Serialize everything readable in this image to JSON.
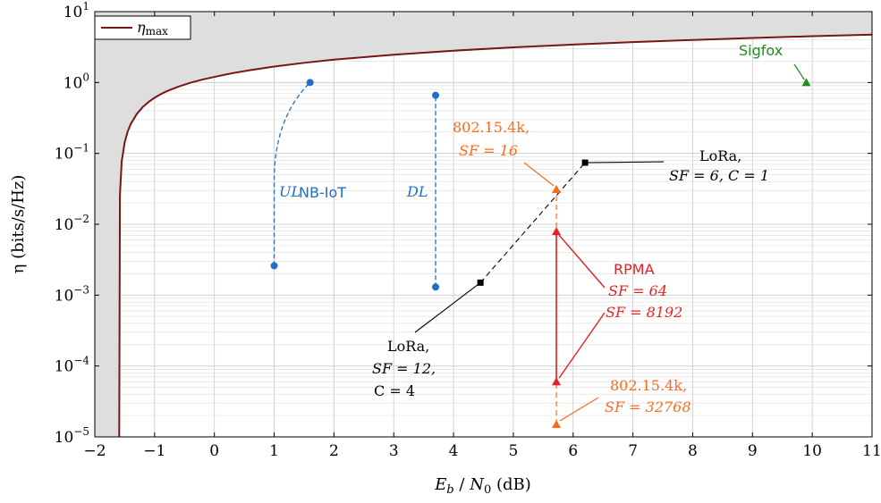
{
  "chart_data": {
    "type": "line",
    "title": "",
    "xlabel": "E_b / N_0 (dB)",
    "xlabel_parts": {
      "e": "E",
      "b": "b",
      "slash": " / ",
      "n": "N",
      "zero": "0",
      "unit": " (dB)"
    },
    "ylabel": "η (bits/s/Hz)",
    "xlim": [
      -2,
      11
    ],
    "ylim": [
      1e-05,
      10
    ],
    "yscale": "log",
    "grid": true,
    "xticks": [
      -2,
      -1,
      0,
      1,
      2,
      3,
      4,
      5,
      6,
      7,
      8,
      9,
      10,
      11
    ],
    "xtick_labels": [
      "−2",
      "−1",
      "0",
      "1",
      "2",
      "3",
      "4",
      "5",
      "6",
      "7",
      "8",
      "9",
      "10",
      "11"
    ],
    "yticks": [
      {
        "value": 10,
        "base": "10",
        "exp": "1"
      },
      {
        "value": 1,
        "base": "10",
        "exp": "0"
      },
      {
        "value": 0.1,
        "base": "10",
        "exp": "−1"
      },
      {
        "value": 0.01,
        "base": "10",
        "exp": "−2"
      },
      {
        "value": 0.001,
        "base": "10",
        "exp": "−3"
      },
      {
        "value": 0.0001,
        "base": "10",
        "exp": "−4"
      },
      {
        "value": 1e-05,
        "base": "10",
        "exp": "−5"
      }
    ],
    "legend": {
      "position": "top-left",
      "entries": [
        {
          "symbol": "η",
          "sub": "max"
        }
      ]
    },
    "series": [
      {
        "name": "η_max",
        "color": "#7a1515",
        "style": "solid",
        "x": [
          -1.5917,
          -1.58,
          -1.55,
          -1.5,
          -1.45,
          -1.4,
          -1.3,
          -1.2,
          -1.1,
          -1.0,
          -0.9,
          -0.8,
          -0.6,
          -0.4,
          -0.2,
          0.0,
          0.3,
          0.6,
          1.0,
          1.5,
          2.0,
          3.0,
          4.0,
          5.0,
          6.0,
          7.0,
          8.0,
          9.0,
          10.0,
          11.0
        ],
        "y": [
          1e-05,
          0.0258,
          0.0775,
          0.1428,
          0.204,
          0.258,
          0.3575,
          0.449,
          0.532,
          0.6095,
          0.682,
          0.7505,
          0.876,
          0.9925,
          1.1,
          1.2,
          1.352,
          1.495,
          1.6775,
          1.895,
          2.1,
          2.468,
          2.81,
          3.13,
          3.43,
          3.715,
          3.985,
          4.245,
          4.5,
          4.745
        ]
      }
    ],
    "regions": [
      {
        "name": "unachievable",
        "color": "#dedede"
      }
    ],
    "colors": {
      "nbiot": "#1f6fc5",
      "lora": "#000000",
      "rpma": "#e32222",
      "ieee": "#ff6a1a",
      "sigfox": "#1f8c1f",
      "curve": "#7a1515"
    },
    "points": {
      "nbiot_ul": [
        {
          "x": 1.0,
          "y": 0.0026
        },
        {
          "x": 1.6,
          "y": 1.0
        }
      ],
      "nbiot_dl": [
        {
          "x": 3.7,
          "y": 0.0013
        },
        {
          "x": 3.7,
          "y": 0.66
        }
      ],
      "lora": [
        {
          "x": 4.45,
          "y": 0.0015
        },
        {
          "x": 6.2,
          "y": 0.074
        }
      ],
      "rpma": [
        {
          "x": 5.72,
          "y": 6e-05
        },
        {
          "x": 5.72,
          "y": 0.0079
        }
      ],
      "ieee": [
        {
          "x": 5.72,
          "y": 1.5e-05
        },
        {
          "x": 5.72,
          "y": 0.031
        }
      ],
      "sigfox": [
        {
          "x": 9.9,
          "y": 1.0
        }
      ]
    },
    "annotations": {
      "nbiot": "NB-IoT",
      "ul": "UL",
      "dl": "DL",
      "sigfox": "Sigfox",
      "lora_top_1": "LoRa,",
      "lora_top_2": "SF = 6, C = 1",
      "lora_bot_1": "LoRa,",
      "lora_bot_2": "SF = 12,",
      "lora_bot_3": "C = 4",
      "ieee_top_1": "802.15.4k,",
      "ieee_top_2": "SF = 16",
      "ieee_bot_1": "802.15.4k,",
      "ieee_bot_2": "SF = 32768",
      "rpma_1": "RPMA",
      "rpma_2": "SF = 64",
      "rpma_3": "SF = 8192"
    }
  }
}
